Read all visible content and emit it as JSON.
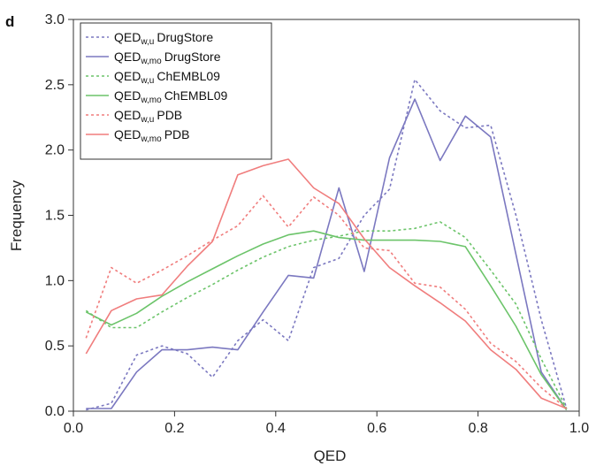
{
  "panel_letter": "d",
  "chart_data": {
    "type": "line",
    "xlabel": "QED",
    "ylabel": "Frequency",
    "xlim": [
      0.0,
      1.0
    ],
    "ylim": [
      0.0,
      3.0
    ],
    "x_ticks": [
      "0.0",
      "0.2",
      "0.4",
      "0.6",
      "0.8",
      "1.0"
    ],
    "y_ticks": [
      "0.0",
      "0.5",
      "1.0",
      "1.5",
      "2.0",
      "2.5",
      "3.0"
    ],
    "grid": false,
    "legend_position": "top-left",
    "x": [
      0.025,
      0.075,
      0.125,
      0.175,
      0.225,
      0.275,
      0.325,
      0.375,
      0.425,
      0.475,
      0.525,
      0.575,
      0.625,
      0.675,
      0.725,
      0.775,
      0.825,
      0.875,
      0.925,
      0.975
    ],
    "series": [
      {
        "name_main": "QED",
        "name_sub": "w,u",
        "name_rest": "DrugStore",
        "color": "#7b78c0",
        "dashed": true,
        "values": [
          0.01,
          0.06,
          0.43,
          0.5,
          0.44,
          0.26,
          0.54,
          0.7,
          0.54,
          1.1,
          1.17,
          1.5,
          1.7,
          2.54,
          2.3,
          2.17,
          2.19,
          1.5,
          0.7,
          0.02
        ]
      },
      {
        "name_main": "QED",
        "name_sub": "w,mo",
        "name_rest": "DrugStore",
        "color": "#7b78c0",
        "dashed": false,
        "values": [
          0.02,
          0.02,
          0.3,
          0.47,
          0.47,
          0.49,
          0.47,
          0.76,
          1.04,
          1.02,
          1.71,
          1.07,
          1.94,
          2.39,
          1.92,
          2.26,
          2.1,
          1.2,
          0.3,
          0.01
        ]
      },
      {
        "name_main": "QED",
        "name_sub": "w,u",
        "name_rest": "ChEMBL09",
        "color": "#6cc46a",
        "dashed": true,
        "values": [
          0.77,
          0.64,
          0.64,
          0.76,
          0.87,
          0.97,
          1.08,
          1.18,
          1.26,
          1.31,
          1.34,
          1.38,
          1.38,
          1.4,
          1.45,
          1.33,
          1.08,
          0.82,
          0.4,
          0.02
        ]
      },
      {
        "name_main": "QED",
        "name_sub": "w,mo",
        "name_rest": "ChEMBL09",
        "color": "#6cc46a",
        "dashed": false,
        "values": [
          0.76,
          0.66,
          0.75,
          0.88,
          0.99,
          1.09,
          1.19,
          1.28,
          1.35,
          1.38,
          1.33,
          1.31,
          1.31,
          1.31,
          1.3,
          1.26,
          0.96,
          0.65,
          0.28,
          0.01
        ]
      },
      {
        "name_main": "QED",
        "name_sub": "w,u",
        "name_rest": "PDB",
        "color": "#f07d7d",
        "dashed": true,
        "values": [
          0.56,
          1.1,
          0.98,
          1.08,
          1.19,
          1.31,
          1.42,
          1.65,
          1.41,
          1.64,
          1.5,
          1.25,
          1.23,
          0.98,
          0.95,
          0.78,
          0.52,
          0.38,
          0.18,
          0.02
        ]
      },
      {
        "name_main": "QED",
        "name_sub": "w,mo",
        "name_rest": "PDB",
        "color": "#f07d7d",
        "dashed": false,
        "values": [
          0.44,
          0.77,
          0.86,
          0.89,
          1.11,
          1.3,
          1.81,
          1.88,
          1.93,
          1.71,
          1.59,
          1.32,
          1.1,
          0.96,
          0.83,
          0.69,
          0.47,
          0.32,
          0.1,
          0.02
        ]
      }
    ]
  }
}
